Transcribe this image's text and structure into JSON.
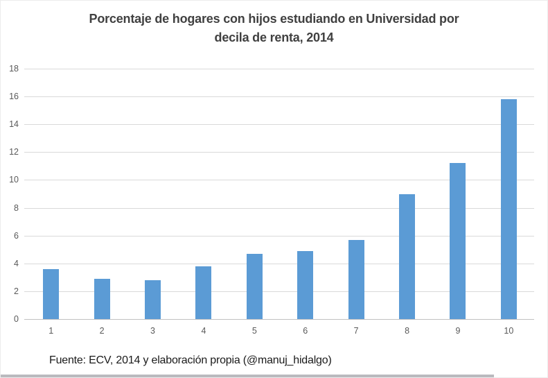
{
  "title": {
    "line1": "Porcentaje de hogares con hijos estudiando en Universidad por",
    "line2": "decila de renta, 2014"
  },
  "footer": {
    "source": "Fuente: ECV, 2014 y elaboración propia (@manuj_hidalgo)"
  },
  "chart_data": {
    "type": "bar",
    "title": "Porcentaje de hogares con hijos estudiando en Universidad por decila de renta, 2014",
    "categories": [
      "1",
      "2",
      "3",
      "4",
      "5",
      "6",
      "7",
      "8",
      "9",
      "10"
    ],
    "values": [
      3.6,
      2.9,
      2.8,
      3.8,
      4.7,
      4.9,
      5.7,
      9.0,
      11.2,
      15.8
    ],
    "xlabel": "",
    "ylabel": "",
    "ylim": [
      0,
      18
    ],
    "yticks": [
      0,
      2,
      4,
      6,
      8,
      10,
      12,
      14,
      16,
      18
    ],
    "grid": true,
    "legend": false,
    "bar_color": "#5b9bd5",
    "gridline_color": "#d9d9d9",
    "axis_label_color": "#595959",
    "title_color": "#404040",
    "source_note": "Fuente: ECV, 2014 y elaboración propia (@manuj_hidalgo)"
  }
}
